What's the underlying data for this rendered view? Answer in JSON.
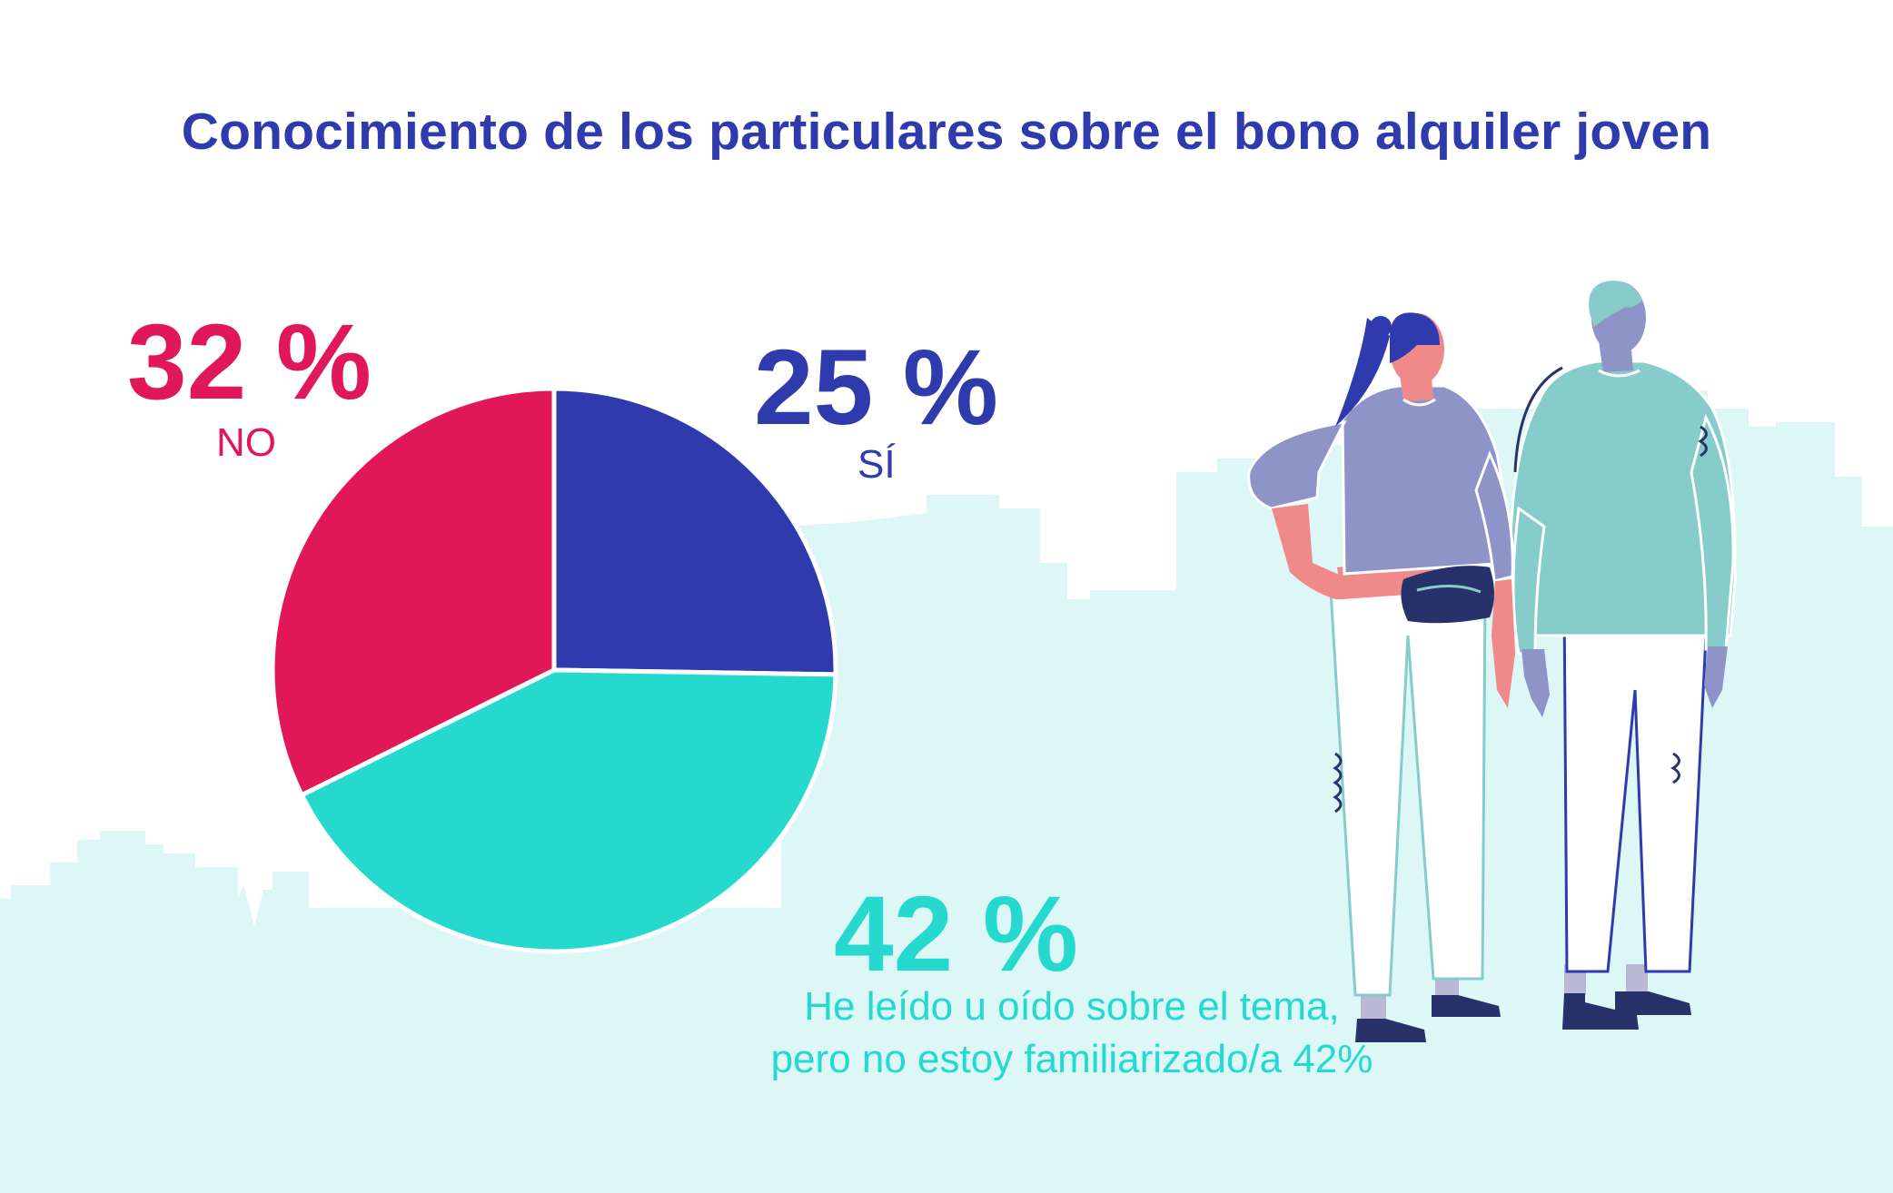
{
  "title": "Conocimiento de los particulares sobre el bono alquiler joven",
  "colors": {
    "no": "#e0185a",
    "si": "#2f3aad",
    "heard": "#26d9cf",
    "skyline": "#dcf7f6"
  },
  "chart_data": {
    "type": "pie",
    "title": "Conocimiento de los particulares sobre el bono alquiler joven",
    "slices": [
      {
        "label": "SÍ",
        "value": 25,
        "value_text": "25 %",
        "color": "#2f3aad"
      },
      {
        "label": "He leído u oído sobre el tema, pero no estoy familiarizado/a 42%",
        "value": 42,
        "value_text": "42 %",
        "color": "#26d9cf"
      },
      {
        "label": "NO",
        "value": 32,
        "value_text": "32 %",
        "color": "#e0185a"
      }
    ]
  },
  "labels": {
    "no_pct": "32 %",
    "no": "NO",
    "si_pct": "25 %",
    "si": "SÍ",
    "heard_pct": "42 %",
    "heard_line1": "He leído u oído sobre el tema,",
    "heard_line2": "pero no estoy familiarizado/a 42%"
  },
  "illustration": {
    "figures": [
      "woman-figure",
      "man-figure"
    ]
  }
}
